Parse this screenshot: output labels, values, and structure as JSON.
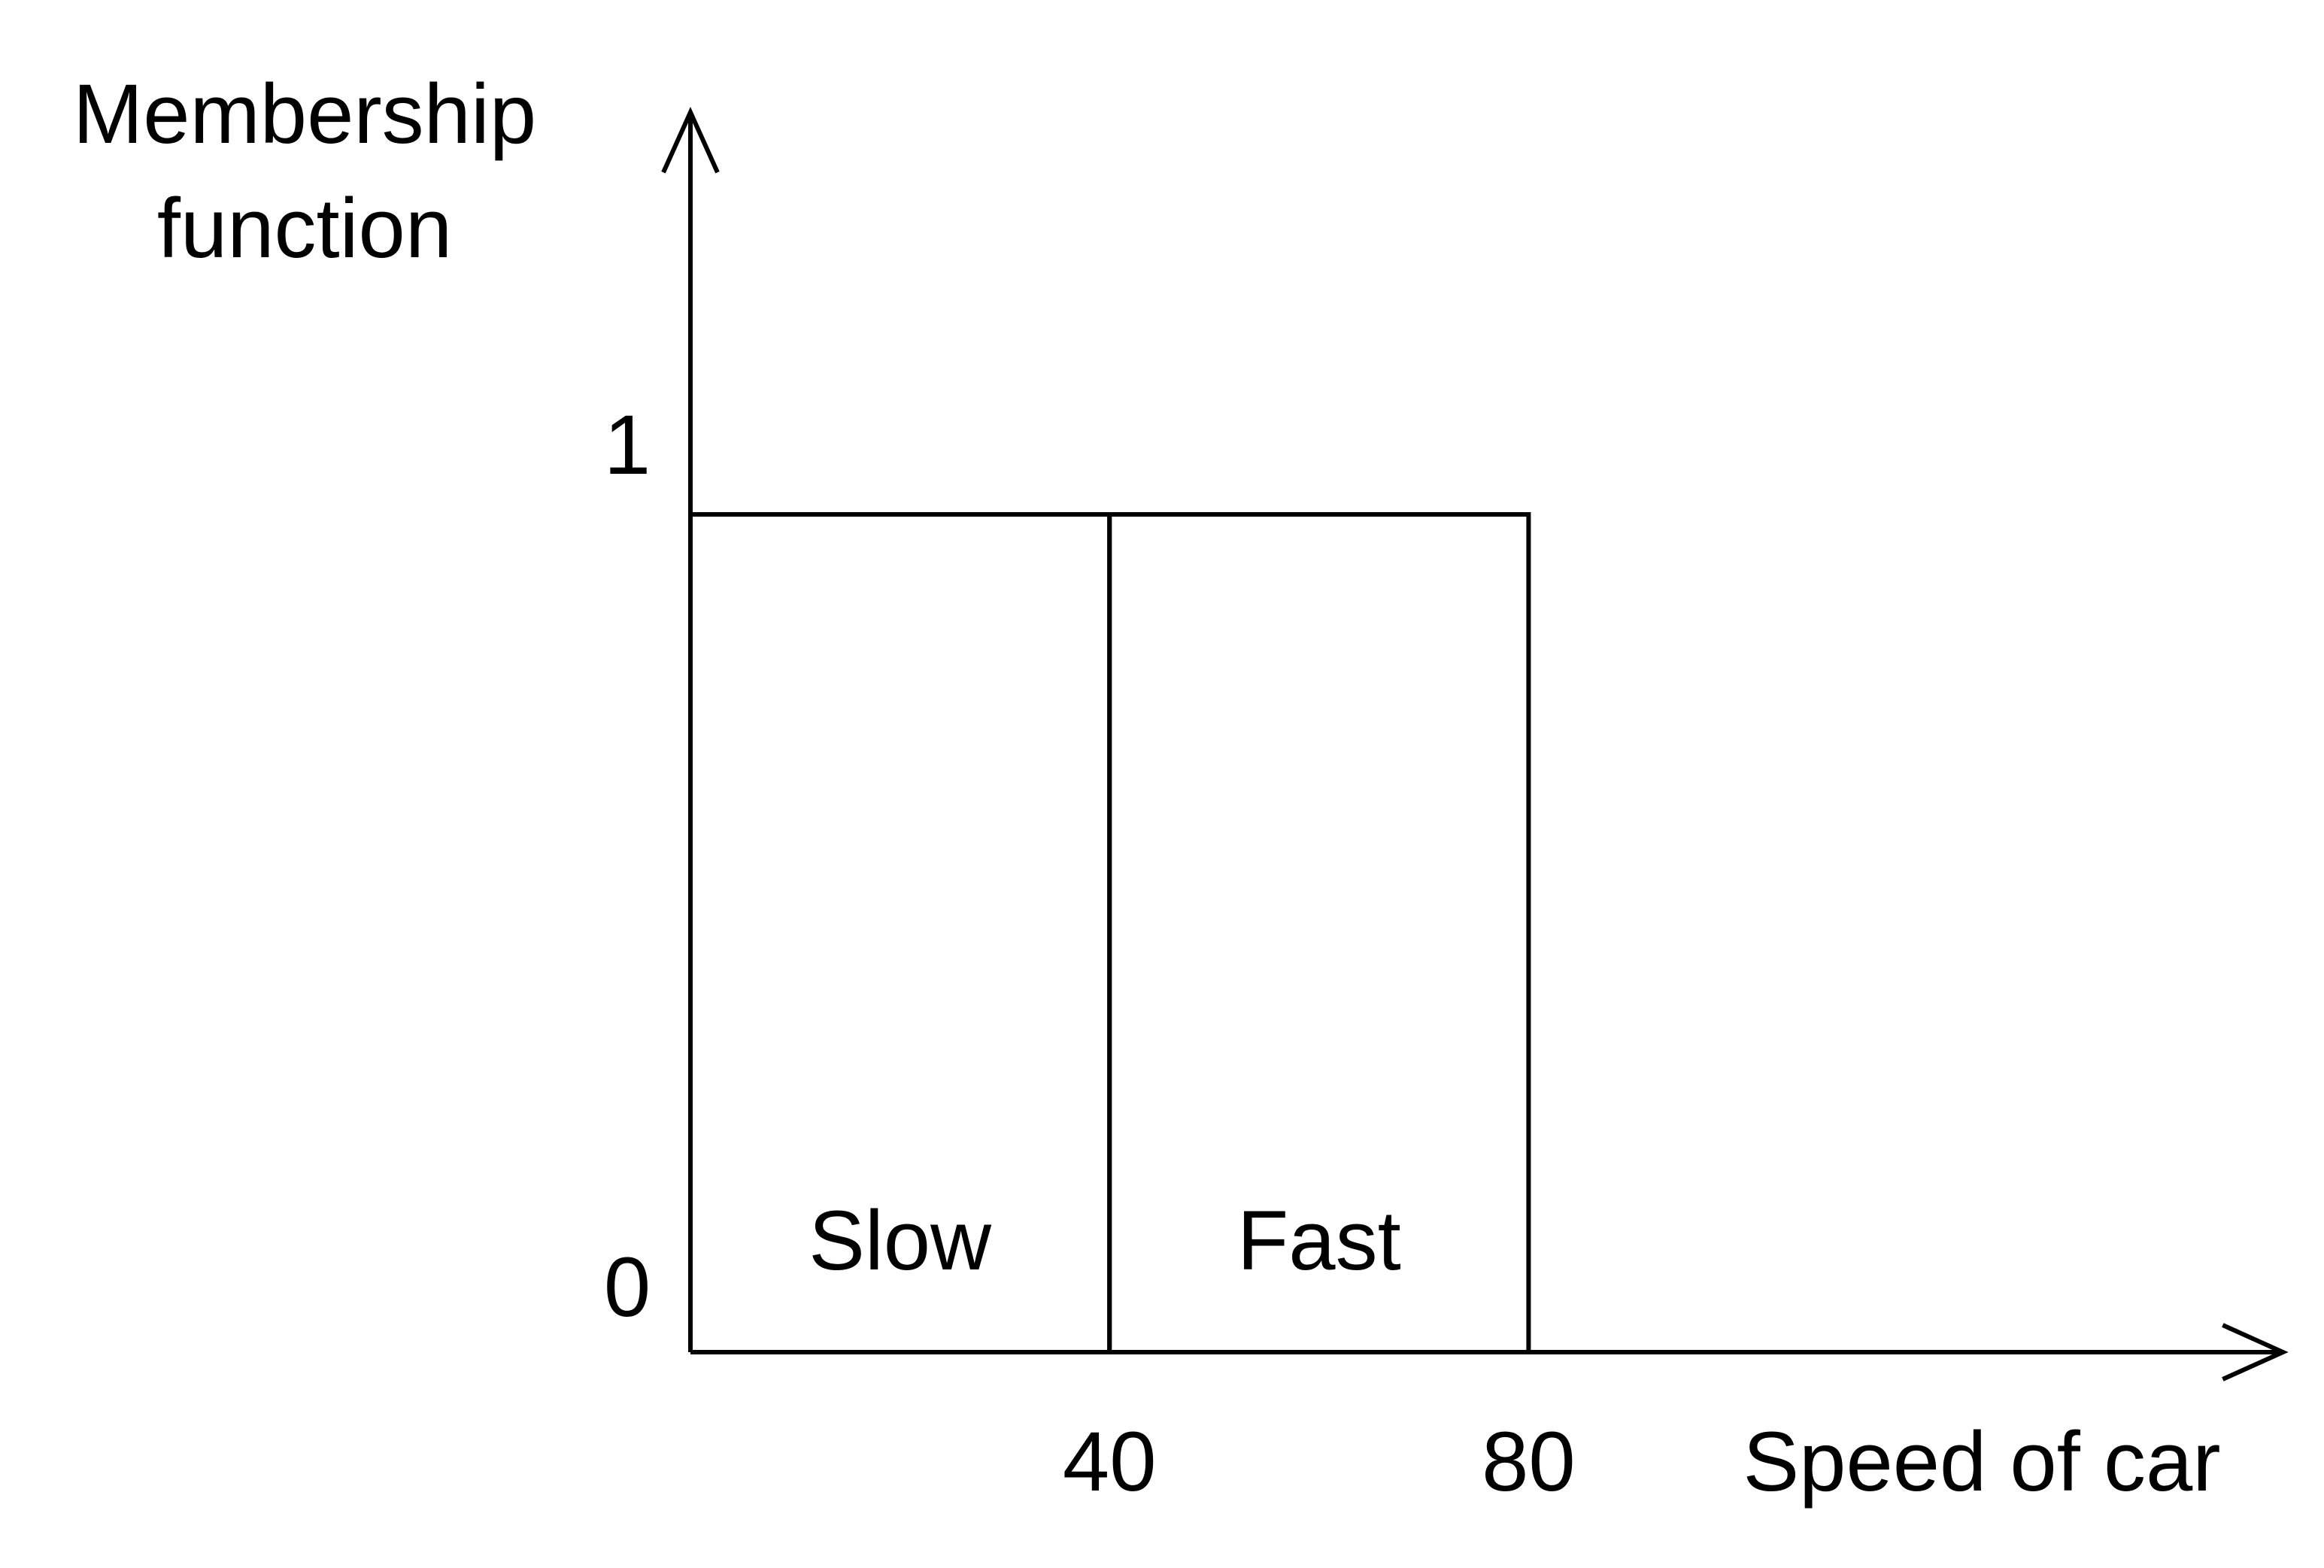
{
  "chart_data": {
    "type": "step",
    "ylabel_lines": [
      "Membership",
      "function"
    ],
    "xlabel": "Speed of car",
    "x_ticks": [
      40,
      80
    ],
    "y_ticks": [
      0,
      1
    ],
    "xlim": [
      0,
      152
    ],
    "ylim": [
      0,
      1.48
    ],
    "grid": false,
    "series": [
      {
        "name": "Slow",
        "points": [
          [
            0,
            0
          ],
          [
            0,
            1
          ],
          [
            40,
            1
          ],
          [
            40,
            0
          ]
        ]
      },
      {
        "name": "Fast",
        "points": [
          [
            40,
            0
          ],
          [
            40,
            1
          ],
          [
            80,
            1
          ],
          [
            80,
            0
          ]
        ]
      }
    ],
    "region_labels": [
      {
        "text": "Slow",
        "x": 20
      },
      {
        "text": "Fast",
        "x": 60
      }
    ],
    "colors": {
      "line": "#000000",
      "background": "#ffffff"
    }
  }
}
